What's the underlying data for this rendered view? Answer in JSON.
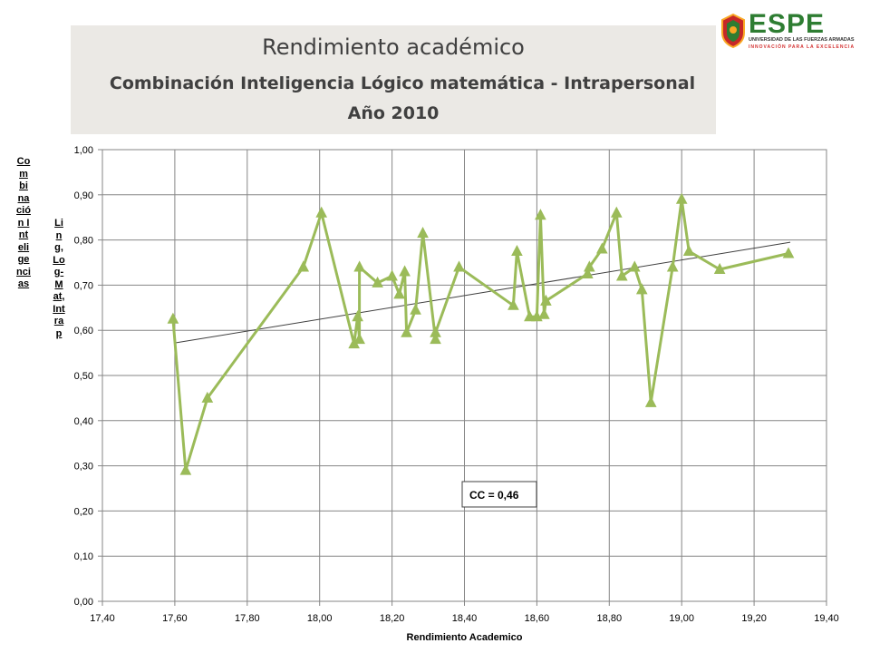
{
  "header": {
    "title": "Rendimiento académico",
    "subtitle": "Combinación Inteligencia Lógico matemática - Intrapersonal",
    "year": "Año 2010"
  },
  "logo": {
    "name": "ESPE",
    "line1": "UNIVERSIDAD DE LAS FUERZAS ARMADAS",
    "line2": "INNOVACIÓN PARA LA EXCELENCIA"
  },
  "side_labels": {
    "outer": "Combinación Inteligencias",
    "inner": "Ling,Log-Mat,Intrap"
  },
  "chart_data": {
    "type": "line",
    "title": "",
    "xlabel": "Rendimiento Academico",
    "ylabel": "",
    "xlim": [
      17.4,
      19.4
    ],
    "ylim": [
      0.0,
      1.0
    ],
    "xticks": [
      "17,40",
      "17,60",
      "17,80",
      "18,00",
      "18,20",
      "18,40",
      "18,60",
      "18,80",
      "19,00",
      "19,20",
      "19,40"
    ],
    "yticks": [
      "0,00",
      "0,10",
      "0,20",
      "0,30",
      "0,40",
      "0,50",
      "0,60",
      "0,70",
      "0,80",
      "0,90",
      "1,00"
    ],
    "grid": true,
    "series": [
      {
        "name": "",
        "color": "#9bbb59",
        "marker": "triangle",
        "x": [
          17.595,
          17.63,
          17.69,
          17.955,
          18.005,
          18.095,
          18.105,
          18.11,
          18.11,
          18.16,
          18.2,
          18.22,
          18.235,
          18.24,
          18.265,
          18.285,
          18.32,
          18.32,
          18.385,
          18.535,
          18.545,
          18.58,
          18.6,
          18.61,
          18.62,
          18.625,
          18.74,
          18.745,
          18.78,
          18.82,
          18.835,
          18.87,
          18.89,
          18.915,
          18.975,
          19.0,
          19.02,
          19.105,
          19.295
        ],
        "y": [
          0.625,
          0.29,
          0.45,
          0.74,
          0.86,
          0.57,
          0.63,
          0.58,
          0.74,
          0.705,
          0.72,
          0.68,
          0.73,
          0.595,
          0.645,
          0.815,
          0.58,
          0.595,
          0.74,
          0.655,
          0.775,
          0.63,
          0.63,
          0.855,
          0.635,
          0.665,
          0.725,
          0.74,
          0.78,
          0.86,
          0.72,
          0.74,
          0.69,
          0.44,
          0.74,
          0.89,
          0.775,
          0.735,
          0.77
        ]
      }
    ],
    "trendline": {
      "x": [
        17.6,
        19.3
      ],
      "y": [
        0.572,
        0.795
      ],
      "color": "#404040"
    },
    "annotation": "CC = 0,46"
  }
}
